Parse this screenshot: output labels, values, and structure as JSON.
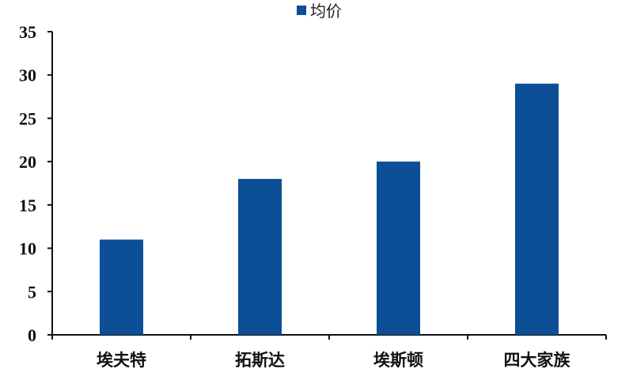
{
  "chart_data": {
    "type": "bar",
    "categories": [
      "埃夫特",
      "拓斯达",
      "埃斯顿",
      "四大家族"
    ],
    "series": [
      {
        "name": "均价",
        "values": [
          11,
          18,
          20,
          29
        ],
        "color": "#0d4f96"
      }
    ],
    "title": "",
    "xlabel": "",
    "ylabel": "",
    "ylim": [
      0,
      35
    ],
    "yticks": [
      0,
      5,
      10,
      15,
      20,
      25,
      30,
      35
    ],
    "grid": false,
    "legend": "top-right"
  }
}
